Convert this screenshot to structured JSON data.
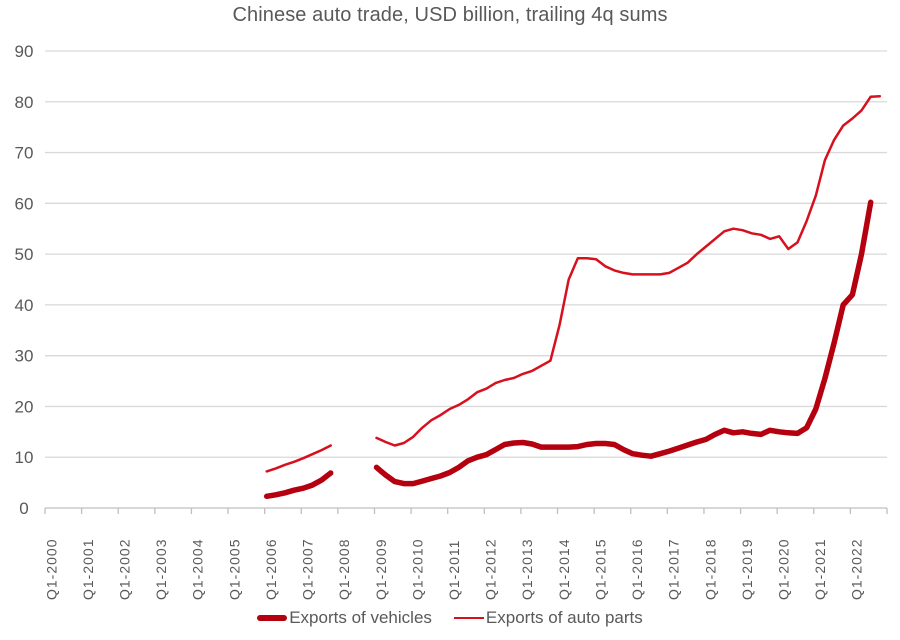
{
  "chart_data": {
    "type": "line",
    "title": "Chinese auto trade, USD billion, trailing 4q sums",
    "xlabel": "",
    "ylabel": "",
    "ylim": [
      0,
      90
    ],
    "yticks": [
      0,
      10,
      20,
      30,
      40,
      50,
      60,
      70,
      80,
      90
    ],
    "grid": true,
    "legend_position": "bottom",
    "x_tick_labels": [
      "Q1-2000",
      "Q1-2001",
      "Q1-2002",
      "Q1-2003",
      "Q1-2004",
      "Q1-2005",
      "Q1-2006",
      "Q1-2007",
      "Q1-2008",
      "Q1-2009",
      "Q1-2010",
      "Q1-2011",
      "Q1-2012",
      "Q1-2013",
      "Q1-2014",
      "Q1-2015",
      "Q1-2016",
      "Q1-2017",
      "Q1-2018",
      "Q1-2019",
      "Q1-2020",
      "Q1-2021",
      "Q1-2022"
    ],
    "x_start_year": 2000,
    "quarters_per_year": 4,
    "series": [
      {
        "name": "Exports of vehicles",
        "color": "#b5000f",
        "line_width": 5.5,
        "start": "Q1-2006",
        "values": [
          2.3,
          2.6,
          3.0,
          3.5,
          3.9,
          4.5,
          5.5,
          6.9,
          null,
          null,
          null,
          null,
          8.0,
          6.5,
          5.2,
          4.8,
          4.8,
          5.3,
          5.8,
          6.3,
          7.0,
          8.0,
          9.3,
          10.0,
          10.5,
          11.5,
          12.5,
          12.8,
          12.9,
          12.6,
          12.0,
          12.0,
          12.0,
          12.0,
          12.1,
          12.5,
          12.7,
          12.7,
          12.5,
          11.5,
          10.7,
          10.4,
          10.2,
          10.7,
          11.2,
          11.8,
          12.4,
          13.0,
          13.5,
          14.5,
          15.3,
          14.8,
          15.0,
          14.7,
          14.5,
          15.3,
          15.0,
          14.8,
          14.7,
          15.8,
          19.5,
          25.5,
          32.5,
          40.0,
          42.0,
          50.0,
          60.2
        ]
      },
      {
        "name": "Exports of auto parts",
        "color": "#d7101e",
        "line_width": 2.5,
        "start": "Q1-2006",
        "values": [
          7.2,
          7.8,
          8.5,
          9.1,
          9.8,
          10.6,
          11.4,
          12.3,
          null,
          null,
          null,
          null,
          13.8,
          13.0,
          12.3,
          12.8,
          14.0,
          15.8,
          17.3,
          18.3,
          19.5,
          20.3,
          21.4,
          22.8,
          23.5,
          24.6,
          25.2,
          25.6,
          26.4,
          27.0,
          28.0,
          29.0,
          36.0,
          45.0,
          49.2,
          49.2,
          49.0,
          47.6,
          46.8,
          46.3,
          46.0,
          46.0,
          46.0,
          46.0,
          46.3,
          47.3,
          48.3,
          50.0,
          51.5,
          53.0,
          54.5,
          55.0,
          54.7,
          54.1,
          53.8,
          53.0,
          53.5,
          51.0,
          52.3,
          56.5,
          61.5,
          68.5,
          72.5,
          75.3,
          76.7,
          78.3,
          81.0,
          81.1
        ]
      }
    ]
  },
  "legend": {
    "items": [
      {
        "label": "Exports of vehicles",
        "style": "thick"
      },
      {
        "label": "Exports of auto parts",
        "style": "thin"
      }
    ]
  }
}
